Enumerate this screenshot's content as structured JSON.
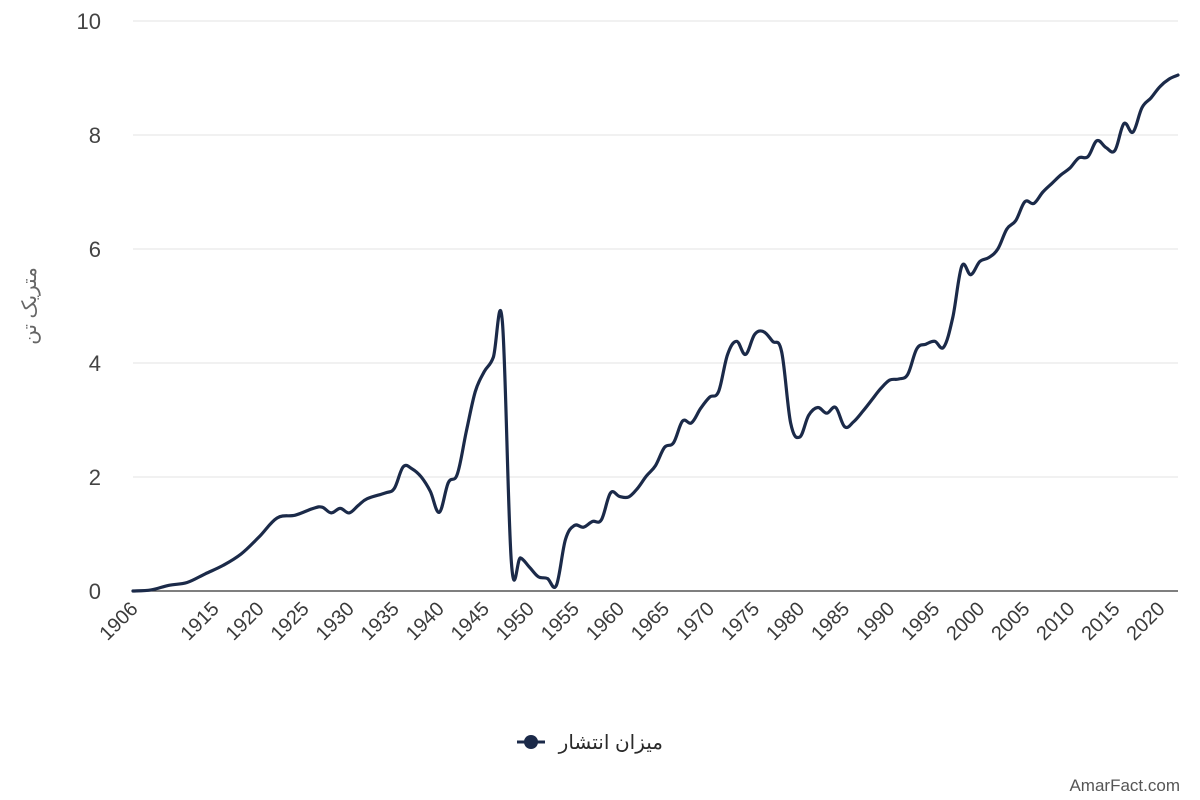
{
  "chart_data": {
    "type": "line",
    "ylabel": "متریک تن",
    "xlabel": "",
    "ylim": [
      0,
      10
    ],
    "yticks": [
      "0",
      "2",
      "4",
      "6",
      "8",
      "10"
    ],
    "xlim": [
      1906,
      2022
    ],
    "xticks": [
      "1906",
      "1915",
      "1920",
      "1925",
      "1930",
      "1935",
      "1940",
      "1945",
      "1950",
      "1955",
      "1960",
      "1965",
      "1970",
      "1975",
      "1980",
      "1985",
      "1990",
      "1995",
      "2000",
      "2005",
      "2010",
      "2015",
      "2020"
    ],
    "grid": true,
    "legend_position": "bottom-center",
    "color": "#1b2a49",
    "series": [
      {
        "name": "میزان انتشار",
        "x": [
          1906,
          1908,
          1910,
          1912,
          1914,
          1916,
          1918,
          1920,
          1922,
          1924,
          1926,
          1927,
          1928,
          1929,
          1930,
          1931,
          1932,
          1934,
          1935,
          1936,
          1937,
          1938,
          1939,
          1940,
          1941,
          1942,
          1943,
          1944,
          1945,
          1946,
          1947,
          1948,
          1949,
          1950,
          1951,
          1952,
          1953,
          1954,
          1955,
          1956,
          1957,
          1958,
          1959,
          1960,
          1961,
          1962,
          1963,
          1964,
          1965,
          1966,
          1967,
          1968,
          1969,
          1970,
          1971,
          1972,
          1973,
          1974,
          1975,
          1976,
          1977,
          1978,
          1979,
          1980,
          1981,
          1982,
          1983,
          1984,
          1985,
          1986,
          1987,
          1988,
          1989,
          1990,
          1991,
          1992,
          1993,
          1994,
          1995,
          1996,
          1997,
          1998,
          1999,
          2000,
          2001,
          2002,
          2003,
          2004,
          2005,
          2006,
          2007,
          2008,
          2009,
          2010,
          2011,
          2012,
          2013,
          2014,
          2015,
          2016,
          2017,
          2018,
          2019,
          2020,
          2021,
          2022
        ],
        "y": [
          0,
          0.02,
          0.1,
          0.15,
          0.3,
          0.45,
          0.65,
          0.95,
          1.28,
          1.33,
          1.45,
          1.47,
          1.37,
          1.45,
          1.37,
          1.5,
          1.62,
          1.72,
          1.8,
          2.18,
          2.14,
          2.0,
          1.75,
          1.38,
          1.9,
          2.05,
          2.8,
          3.5,
          3.85,
          4.1,
          4.72,
          0.5,
          0.58,
          0.42,
          0.25,
          0.22,
          0.1,
          0.9,
          1.15,
          1.12,
          1.22,
          1.25,
          1.72,
          1.66,
          1.65,
          1.8,
          2.02,
          2.2,
          2.52,
          2.6,
          2.98,
          2.95,
          3.2,
          3.4,
          3.5,
          4.15,
          4.38,
          4.15,
          4.5,
          4.55,
          4.38,
          4.2,
          2.95,
          2.7,
          3.08,
          3.22,
          3.12,
          3.22,
          2.88,
          2.97,
          3.15,
          3.35,
          3.55,
          3.7,
          3.72,
          3.8,
          4.25,
          4.33,
          4.38,
          4.28,
          4.8,
          5.7,
          5.55,
          5.78,
          5.85,
          6.0,
          6.35,
          6.5,
          6.83,
          6.8,
          7.0,
          7.15,
          7.3,
          7.42,
          7.6,
          7.62,
          7.9,
          7.78,
          7.73,
          8.2,
          8.05,
          8.48,
          8.65,
          8.85,
          8.98,
          9.05
        ]
      }
    ]
  },
  "branding": {
    "text": "AmarFact.com"
  }
}
